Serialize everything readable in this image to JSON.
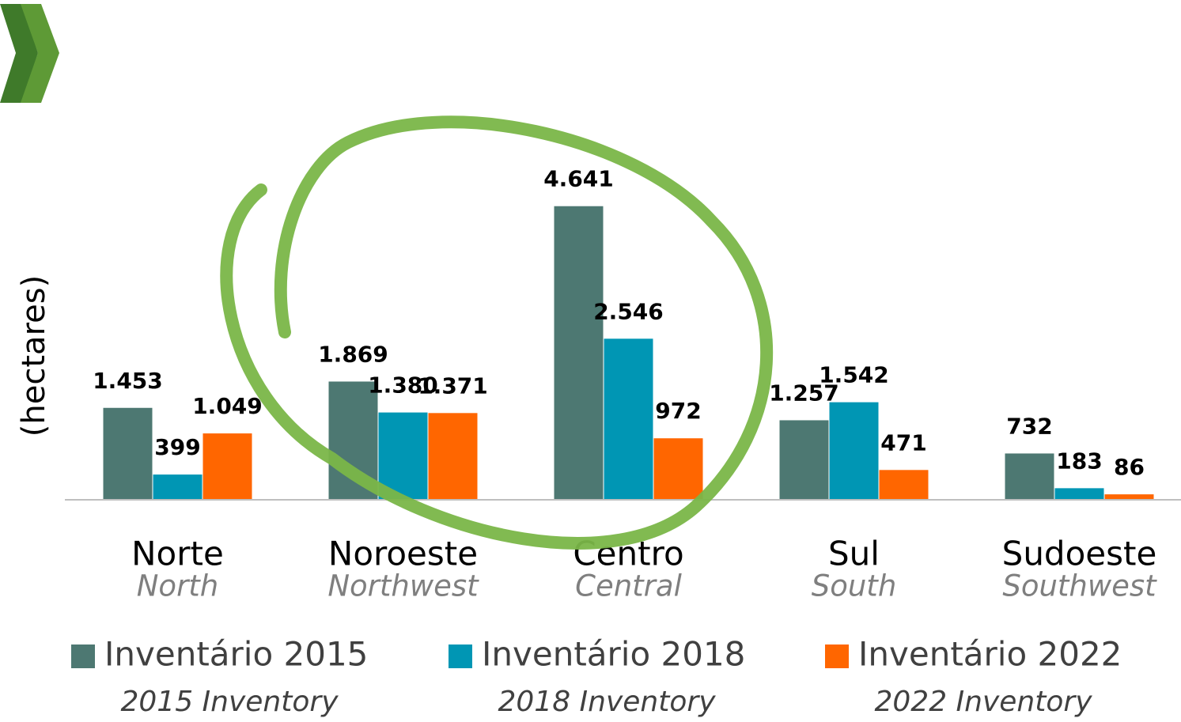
{
  "chart_data": {
    "type": "bar",
    "y_label": "(hectares)",
    "categories": [
      "Norte",
      "Noroeste",
      "Centro",
      "Sul",
      "Sudoeste"
    ],
    "category_translations": [
      "North",
      "Northwest",
      "Central",
      "South",
      "Southwest"
    ],
    "series": [
      {
        "name": "Inventário 2015",
        "translation": "2015 Inventory",
        "color": "#4d7872",
        "values": [
          1453,
          1869,
          4641,
          1257,
          732
        ],
        "value_labels": [
          "1.453",
          "1.869",
          "4.641",
          "1.257",
          "732"
        ]
      },
      {
        "name": "Inventário 2018",
        "translation": "2018 Inventory",
        "color": "#0096b4",
        "values": [
          399,
          1380,
          2546,
          1542,
          183
        ],
        "value_labels": [
          "399",
          "1.380",
          "2.546",
          "1.542",
          "183"
        ]
      },
      {
        "name": "Inventário 2022",
        "translation": "2022 Inventory",
        "color": "#ff6600",
        "values": [
          1049,
          1371,
          972,
          471,
          86
        ],
        "value_labels": [
          "1.049",
          "1.371",
          "972",
          "471",
          "86"
        ]
      }
    ],
    "ylim": [
      0,
      5000
    ],
    "grid": false,
    "legend": "bottom"
  }
}
